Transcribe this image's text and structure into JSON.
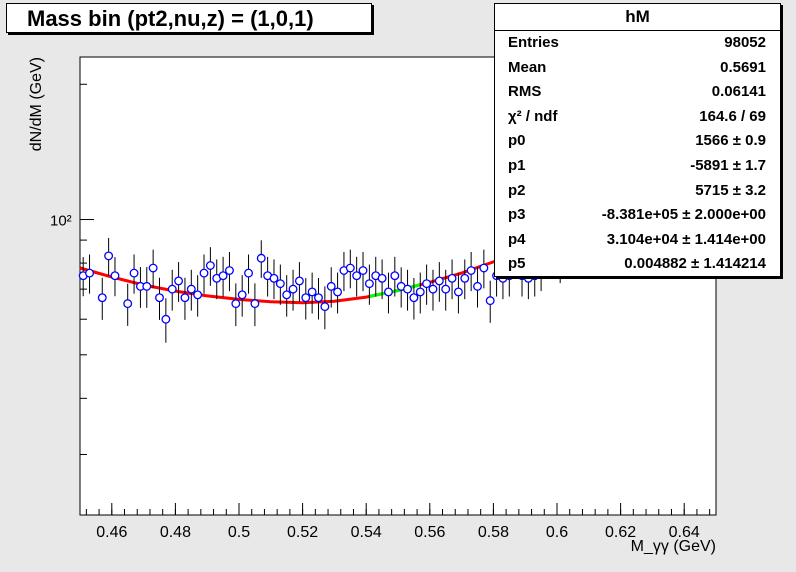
{
  "title": "Mass bin (pt2,nu,z) = (1,0,1)",
  "stats": {
    "name": "hM",
    "rows": [
      {
        "label": "Entries",
        "value": "98052"
      },
      {
        "label": "Mean",
        "value": "0.5691"
      },
      {
        "label": "RMS",
        "value": "0.06141"
      },
      {
        "label": "χ² / ndf",
        "value": "164.6 / 69"
      },
      {
        "label": "p0",
        "value": "1566 ± 0.9"
      },
      {
        "label": "p1",
        "value": "-5891 ± 1.7"
      },
      {
        "label": "p2",
        "value": "5715 ± 3.2"
      },
      {
        "label": "p3",
        "value": "-8.381e+05 ± 2.000e+00"
      },
      {
        "label": "p4",
        "value": "3.104e+04 ± 1.414e+00"
      },
      {
        "label": "p5",
        "value": "0.004882 ± 1.414214"
      }
    ]
  },
  "chart_data": {
    "type": "scatter",
    "title": "Mass bin (pt2,nu,z) = (1,0,1)",
    "xlabel": "M_γγ (GeV)",
    "ylabel": "dN/dM (GeV)",
    "xlim": [
      0.45,
      0.65
    ],
    "ylim": [
      22,
      230
    ],
    "yscale": "log",
    "xticks": [
      0.46,
      0.48,
      0.5,
      0.52,
      0.54,
      0.56,
      0.58,
      0.6,
      0.62,
      0.64
    ],
    "xtick_labels": [
      "0.46",
      "0.48",
      "0.5",
      "0.52",
      "0.54",
      "0.56",
      "0.58",
      "0.6",
      "0.62",
      "0.64"
    ],
    "ytick_label": "10²",
    "colors": {
      "points": "#0000ff",
      "fit": "#ff0000",
      "fit_signal": "#00ff00",
      "errors": "#000000"
    },
    "series": [
      {
        "x": [
          0.451,
          0.453,
          0.457,
          0.459,
          0.461,
          0.465,
          0.467,
          0.469,
          0.471,
          0.473,
          0.475,
          0.477,
          0.479,
          0.481,
          0.483,
          0.485,
          0.487,
          0.489,
          0.491,
          0.493,
          0.495,
          0.497,
          0.499,
          0.501,
          0.503,
          0.505,
          0.507,
          0.509,
          0.511,
          0.513,
          0.515,
          0.517,
          0.519,
          0.521,
          0.523,
          0.525,
          0.527,
          0.529,
          0.531,
          0.533,
          0.535,
          0.537,
          0.539,
          0.541,
          0.543,
          0.545,
          0.547,
          0.549,
          0.551,
          0.553,
          0.555,
          0.557,
          0.559,
          0.561,
          0.563,
          0.565,
          0.567,
          0.569,
          0.571,
          0.573,
          0.575,
          0.577,
          0.579,
          0.581,
          0.583,
          0.585,
          0.587,
          0.589,
          0.591,
          0.593,
          0.595,
          0.597,
          0.599,
          0.601,
          0.611
        ],
        "y": [
          75,
          76,
          67,
          83,
          75,
          65,
          76,
          71,
          71,
          78,
          67,
          60,
          70,
          73,
          67,
          70,
          68,
          76,
          79,
          74,
          75,
          77,
          65,
          68,
          76,
          65,
          82,
          75,
          74,
          72,
          68,
          70,
          73,
          67,
          69,
          67,
          64,
          71,
          69,
          77,
          78,
          75,
          77,
          72,
          75,
          74,
          69,
          75,
          71,
          70,
          67,
          69,
          72,
          70,
          73,
          70,
          74,
          69,
          74,
          77,
          71,
          78,
          66,
          75,
          74,
          75,
          84,
          75,
          74,
          75,
          77,
          82,
          84,
          80,
          94
        ],
        "err": [
          7.5,
          7.6,
          7.2,
          8.0,
          7.5,
          7.0,
          7.6,
          7.4,
          7.4,
          7.7,
          7.2,
          6.8,
          7.3,
          7.4,
          7.2,
          7.3,
          7.2,
          7.6,
          7.8,
          7.5,
          7.6,
          7.7,
          7.1,
          7.2,
          7.6,
          7.1,
          7.9,
          7.6,
          7.5,
          7.4,
          7.2,
          7.3,
          7.4,
          7.1,
          7.2,
          7.1,
          7.0,
          7.3,
          7.2,
          7.7,
          7.7,
          7.6,
          7.7,
          7.4,
          7.6,
          7.5,
          7.2,
          7.6,
          7.3,
          7.3,
          7.1,
          7.2,
          7.4,
          7.3,
          7.4,
          7.3,
          7.5,
          7.2,
          7.5,
          7.7,
          7.3,
          7.7,
          7.1,
          7.6,
          7.5,
          7.6,
          8.0,
          7.6,
          7.5,
          7.6,
          7.7,
          7.9,
          8.0,
          7.8,
          8.5
        ]
      }
    ],
    "fit_curve": {
      "x": [
        0.45,
        0.46,
        0.47,
        0.48,
        0.49,
        0.5,
        0.51,
        0.52,
        0.53,
        0.54,
        0.55,
        0.56,
        0.57,
        0.58,
        0.59,
        0.6,
        0.61,
        0.62
      ],
      "y": [
        78,
        74.5,
        71.5,
        69.3,
        67.6,
        66.4,
        65.6,
        65.3,
        65.8,
        67.2,
        69.5,
        72.5,
        76.0,
        80.5,
        86.0,
        92.5,
        100,
        108
      ]
    },
    "fit_signal_range": [
      0.541,
      0.557
    ]
  }
}
